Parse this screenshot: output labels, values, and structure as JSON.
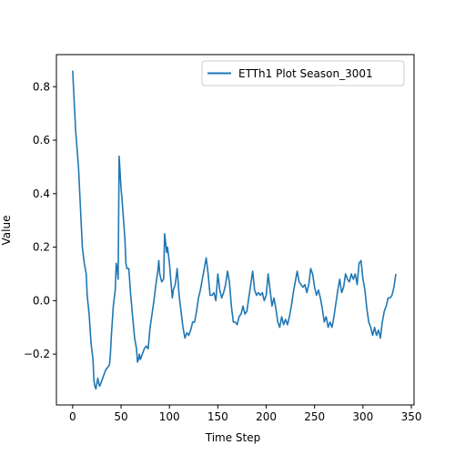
{
  "chart_data": {
    "type": "line",
    "title": "",
    "xlabel": "Time Step",
    "ylabel": "Value",
    "xlim": [
      -16.8,
      352.8
    ],
    "ylim": [
      -0.39,
      0.92
    ],
    "xticks": [
      0,
      50,
      100,
      150,
      200,
      250,
      300,
      350
    ],
    "yticks": [
      -0.2,
      0.0,
      0.2,
      0.4,
      0.6,
      0.8
    ],
    "ytick_labels": [
      "−0.2",
      "0.0",
      "0.2",
      "0.4",
      "0.6",
      "0.8"
    ],
    "grid": false,
    "legend": "upper-right",
    "series": [
      {
        "name": "ETTh1 Plot Season_3001",
        "color": "#1f77b4",
        "points": [
          [
            0,
            0.86
          ],
          [
            3,
            0.64
          ],
          [
            6,
            0.5
          ],
          [
            8,
            0.35
          ],
          [
            10,
            0.2
          ],
          [
            12,
            0.14
          ],
          [
            14,
            0.1
          ],
          [
            15,
            0.02
          ],
          [
            17,
            -0.05
          ],
          [
            19,
            -0.16
          ],
          [
            21,
            -0.22
          ],
          [
            22,
            -0.3
          ],
          [
            23,
            -0.32
          ],
          [
            24,
            -0.33
          ],
          [
            25,
            -0.31
          ],
          [
            26,
            -0.29
          ],
          [
            27,
            -0.31
          ],
          [
            28,
            -0.32
          ],
          [
            30,
            -0.3
          ],
          [
            32,
            -0.28
          ],
          [
            34,
            -0.26
          ],
          [
            36,
            -0.25
          ],
          [
            38,
            -0.24
          ],
          [
            39,
            -0.2
          ],
          [
            40,
            -0.13
          ],
          [
            42,
            -0.02
          ],
          [
            44,
            0.04
          ],
          [
            45,
            0.14
          ],
          [
            46,
            0.12
          ],
          [
            47,
            0.08
          ],
          [
            48,
            0.54
          ],
          [
            49,
            0.48
          ],
          [
            50,
            0.42
          ],
          [
            51,
            0.38
          ],
          [
            52,
            0.33
          ],
          [
            54,
            0.23
          ],
          [
            55,
            0.14
          ],
          [
            56,
            0.12
          ],
          [
            58,
            0.12
          ],
          [
            60,
            0.02
          ],
          [
            62,
            -0.06
          ],
          [
            64,
            -0.14
          ],
          [
            66,
            -0.18
          ],
          [
            67,
            -0.23
          ],
          [
            68,
            -0.22
          ],
          [
            69,
            -0.2
          ],
          [
            70,
            -0.22
          ],
          [
            72,
            -0.2
          ],
          [
            74,
            -0.18
          ],
          [
            76,
            -0.17
          ],
          [
            78,
            -0.18
          ],
          [
            80,
            -0.1
          ],
          [
            82,
            -0.05
          ],
          [
            84,
            0.0
          ],
          [
            86,
            0.06
          ],
          [
            88,
            0.11
          ],
          [
            89,
            0.15
          ],
          [
            90,
            0.1
          ],
          [
            92,
            0.07
          ],
          [
            94,
            0.08
          ],
          [
            95,
            0.25
          ],
          [
            96,
            0.22
          ],
          [
            97,
            0.18
          ],
          [
            98,
            0.2
          ],
          [
            100,
            0.14
          ],
          [
            102,
            0.05
          ],
          [
            103,
            0.01
          ],
          [
            104,
            0.04
          ],
          [
            106,
            0.06
          ],
          [
            108,
            0.12
          ],
          [
            110,
            0.02
          ],
          [
            112,
            -0.04
          ],
          [
            114,
            -0.1
          ],
          [
            116,
            -0.14
          ],
          [
            118,
            -0.12
          ],
          [
            120,
            -0.13
          ],
          [
            122,
            -0.11
          ],
          [
            124,
            -0.08
          ],
          [
            126,
            -0.08
          ],
          [
            128,
            -0.04
          ],
          [
            130,
            0.01
          ],
          [
            132,
            0.04
          ],
          [
            134,
            0.08
          ],
          [
            136,
            0.12
          ],
          [
            138,
            0.16
          ],
          [
            140,
            0.1
          ],
          [
            142,
            0.02
          ],
          [
            144,
            0.02
          ],
          [
            146,
            0.03
          ],
          [
            148,
            0.0
          ],
          [
            150,
            0.1
          ],
          [
            152,
            0.04
          ],
          [
            154,
            0.01
          ],
          [
            156,
            0.03
          ],
          [
            158,
            0.06
          ],
          [
            160,
            0.11
          ],
          [
            162,
            0.07
          ],
          [
            164,
            -0.02
          ],
          [
            166,
            -0.08
          ],
          [
            168,
            -0.08
          ],
          [
            170,
            -0.09
          ],
          [
            172,
            -0.06
          ],
          [
            174,
            -0.05
          ],
          [
            176,
            -0.02
          ],
          [
            178,
            -0.05
          ],
          [
            180,
            -0.04
          ],
          [
            182,
            0.01
          ],
          [
            184,
            0.06
          ],
          [
            186,
            0.11
          ],
          [
            188,
            0.04
          ],
          [
            190,
            0.02
          ],
          [
            192,
            0.03
          ],
          [
            194,
            0.02
          ],
          [
            196,
            0.03
          ],
          [
            198,
            0.0
          ],
          [
            200,
            0.02
          ],
          [
            202,
            0.1
          ],
          [
            204,
            0.04
          ],
          [
            206,
            -0.02
          ],
          [
            208,
            0.01
          ],
          [
            210,
            -0.03
          ],
          [
            212,
            -0.08
          ],
          [
            214,
            -0.1
          ],
          [
            216,
            -0.06
          ],
          [
            218,
            -0.09
          ],
          [
            220,
            -0.07
          ],
          [
            222,
            -0.09
          ],
          [
            224,
            -0.06
          ],
          [
            226,
            -0.02
          ],
          [
            228,
            0.03
          ],
          [
            230,
            0.07
          ],
          [
            232,
            0.11
          ],
          [
            234,
            0.07
          ],
          [
            236,
            0.06
          ],
          [
            238,
            0.05
          ],
          [
            240,
            0.06
          ],
          [
            242,
            0.03
          ],
          [
            244,
            0.06
          ],
          [
            246,
            0.12
          ],
          [
            248,
            0.1
          ],
          [
            250,
            0.05
          ],
          [
            252,
            0.02
          ],
          [
            254,
            0.04
          ],
          [
            256,
            0.01
          ],
          [
            258,
            -0.03
          ],
          [
            260,
            -0.08
          ],
          [
            262,
            -0.06
          ],
          [
            264,
            -0.1
          ],
          [
            266,
            -0.08
          ],
          [
            268,
            -0.1
          ],
          [
            270,
            -0.06
          ],
          [
            272,
            -0.01
          ],
          [
            274,
            0.04
          ],
          [
            276,
            0.08
          ],
          [
            278,
            0.03
          ],
          [
            280,
            0.05
          ],
          [
            282,
            0.1
          ],
          [
            284,
            0.08
          ],
          [
            286,
            0.07
          ],
          [
            288,
            0.1
          ],
          [
            290,
            0.08
          ],
          [
            292,
            0.1
          ],
          [
            294,
            0.06
          ],
          [
            296,
            0.14
          ],
          [
            298,
            0.15
          ],
          [
            300,
            0.08
          ],
          [
            302,
            0.04
          ],
          [
            304,
            -0.03
          ],
          [
            306,
            -0.08
          ],
          [
            308,
            -0.1
          ],
          [
            310,
            -0.13
          ],
          [
            312,
            -0.1
          ],
          [
            314,
            -0.13
          ],
          [
            316,
            -0.11
          ],
          [
            318,
            -0.14
          ],
          [
            320,
            -0.08
          ],
          [
            322,
            -0.04
          ],
          [
            324,
            -0.02
          ],
          [
            326,
            0.01
          ],
          [
            328,
            0.01
          ],
          [
            330,
            0.02
          ],
          [
            332,
            0.05
          ],
          [
            334,
            0.1
          ]
        ]
      }
    ]
  }
}
